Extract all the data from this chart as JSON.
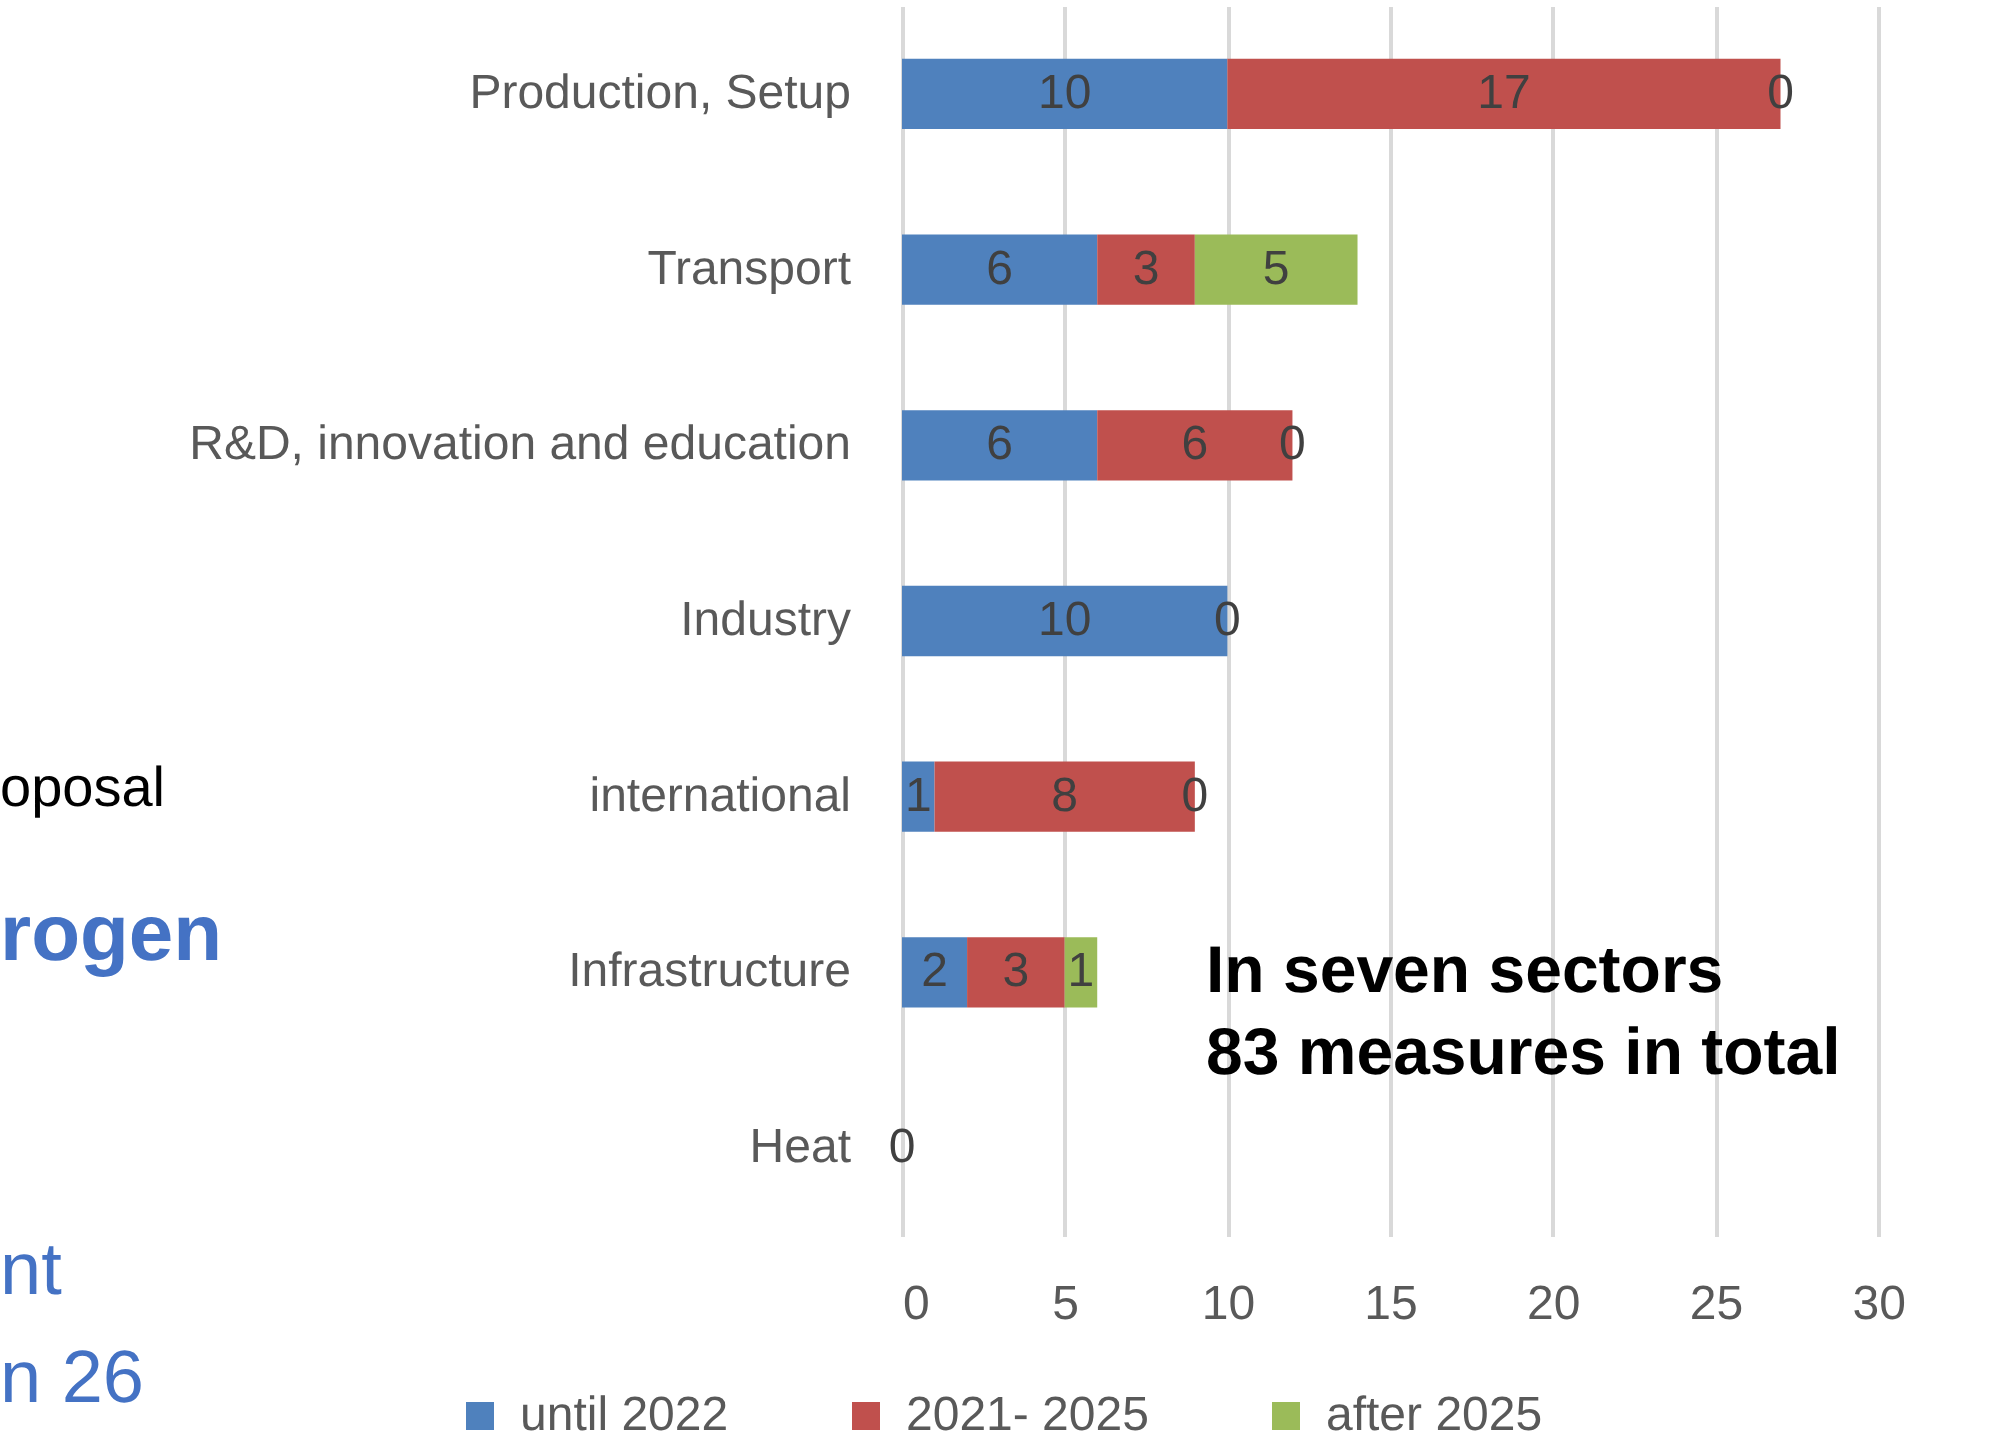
{
  "chart_data": {
    "type": "bar",
    "orientation": "horizontal",
    "stacked": true,
    "categories": [
      "Production, Setup",
      "Transport",
      "R&D, innovation and education",
      "Industry",
      "international",
      "Infrastructure",
      "Heat"
    ],
    "series": [
      {
        "name": "until 2022",
        "color": "#4f81bd",
        "values": [
          10,
          6,
          6,
          10,
          1,
          2,
          0
        ],
        "value_labels": [
          "10",
          "6",
          "6",
          "10",
          "1",
          "2",
          "0"
        ]
      },
      {
        "name": "2021- 2025",
        "color": "#c0504d",
        "values": [
          17,
          3,
          6,
          0,
          8,
          3,
          0
        ],
        "value_labels": [
          "17",
          "3",
          "6",
          "0",
          "8",
          "3",
          null
        ]
      },
      {
        "name": "after 2025",
        "color": "#9bbb59",
        "values": [
          0,
          5,
          0,
          0,
          0,
          1,
          0
        ],
        "value_labels": [
          "0",
          "5",
          "0",
          null,
          "0",
          "1",
          null
        ]
      }
    ],
    "xlim": [
      0,
      33.5
    ],
    "xticks": [
      0,
      5,
      10,
      15,
      20,
      25,
      30
    ],
    "grid": "x",
    "legend": "bottom",
    "annotations": [
      "In seven sectors\n83 measures in total",
      "oposal",
      "rogen",
      "nt",
      "n 26"
    ]
  }
}
